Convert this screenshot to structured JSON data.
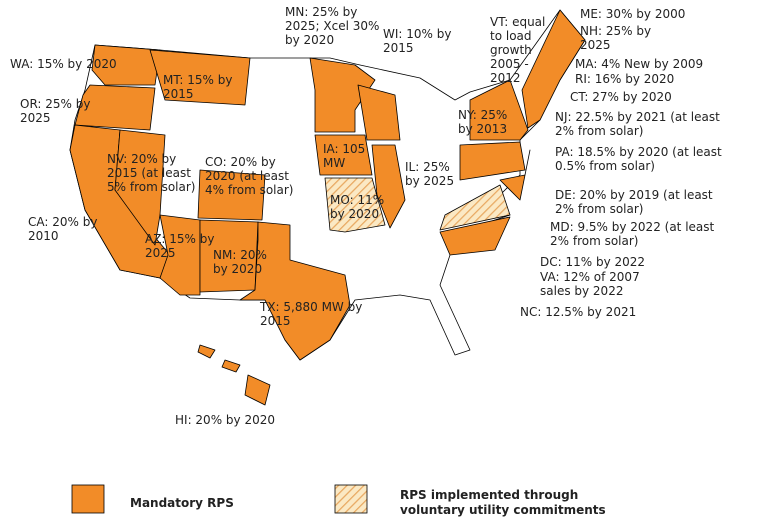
{
  "labels": [
    {
      "text": "MN: 25% by 2025; Xcel 30% by 2020"
    },
    {
      "text": "WI: 10% by 2015"
    },
    {
      "text": "VT: equal to load growth 2005 - 2012"
    },
    {
      "text": "ME: 30% by 2000"
    },
    {
      "text": "NH: 25% by 2025"
    },
    {
      "text": "MA: 4% New by 2009"
    },
    {
      "text": "RI: 16% by 2020"
    },
    {
      "text": "CT: 27% by 2020"
    },
    {
      "text": "NJ: 22.5% by 2021 (at least 2% from solar)"
    },
    {
      "text": "PA: 18.5% by 2020 (at least 0.5% from solar)"
    },
    {
      "text": "DE: 20% by 2019 (at least 2% from solar)"
    },
    {
      "text": "MD: 9.5% by 2022 (at least 2% from solar)"
    },
    {
      "text": "DC: 11% by 2022"
    },
    {
      "text": "VA: 12% of 2007 sales by 2022"
    },
    {
      "text": "NC: 12.5% by 2021"
    },
    {
      "text": "WA: 15% by 2020"
    },
    {
      "text": "OR: 25% by 2025"
    },
    {
      "text": "MT: 15% by 2015"
    },
    {
      "text": "NV: 20% by 2015 (at least 5% from solar)"
    },
    {
      "text": "CO: 20% by 2020 (at least 4% from solar)"
    },
    {
      "text": "IA: 105 MW"
    },
    {
      "text": "IL: 25% by 2025"
    },
    {
      "text": "NY: 25% by 2013"
    },
    {
      "text": "MO: 11% by 2020"
    },
    {
      "text": "CA: 20% by 2010"
    },
    {
      "text": "AZ: 15% by 2025"
    },
    {
      "text": "NM: 20% by 2020"
    },
    {
      "text": "TX: 5,880 MW by 2015"
    },
    {
      "text": "HI: 20% by 2020"
    }
  ],
  "legend": [
    {
      "text": "Mandatory RPS"
    },
    {
      "text": "RPS implemented through voluntary utility commitments"
    }
  ]
}
